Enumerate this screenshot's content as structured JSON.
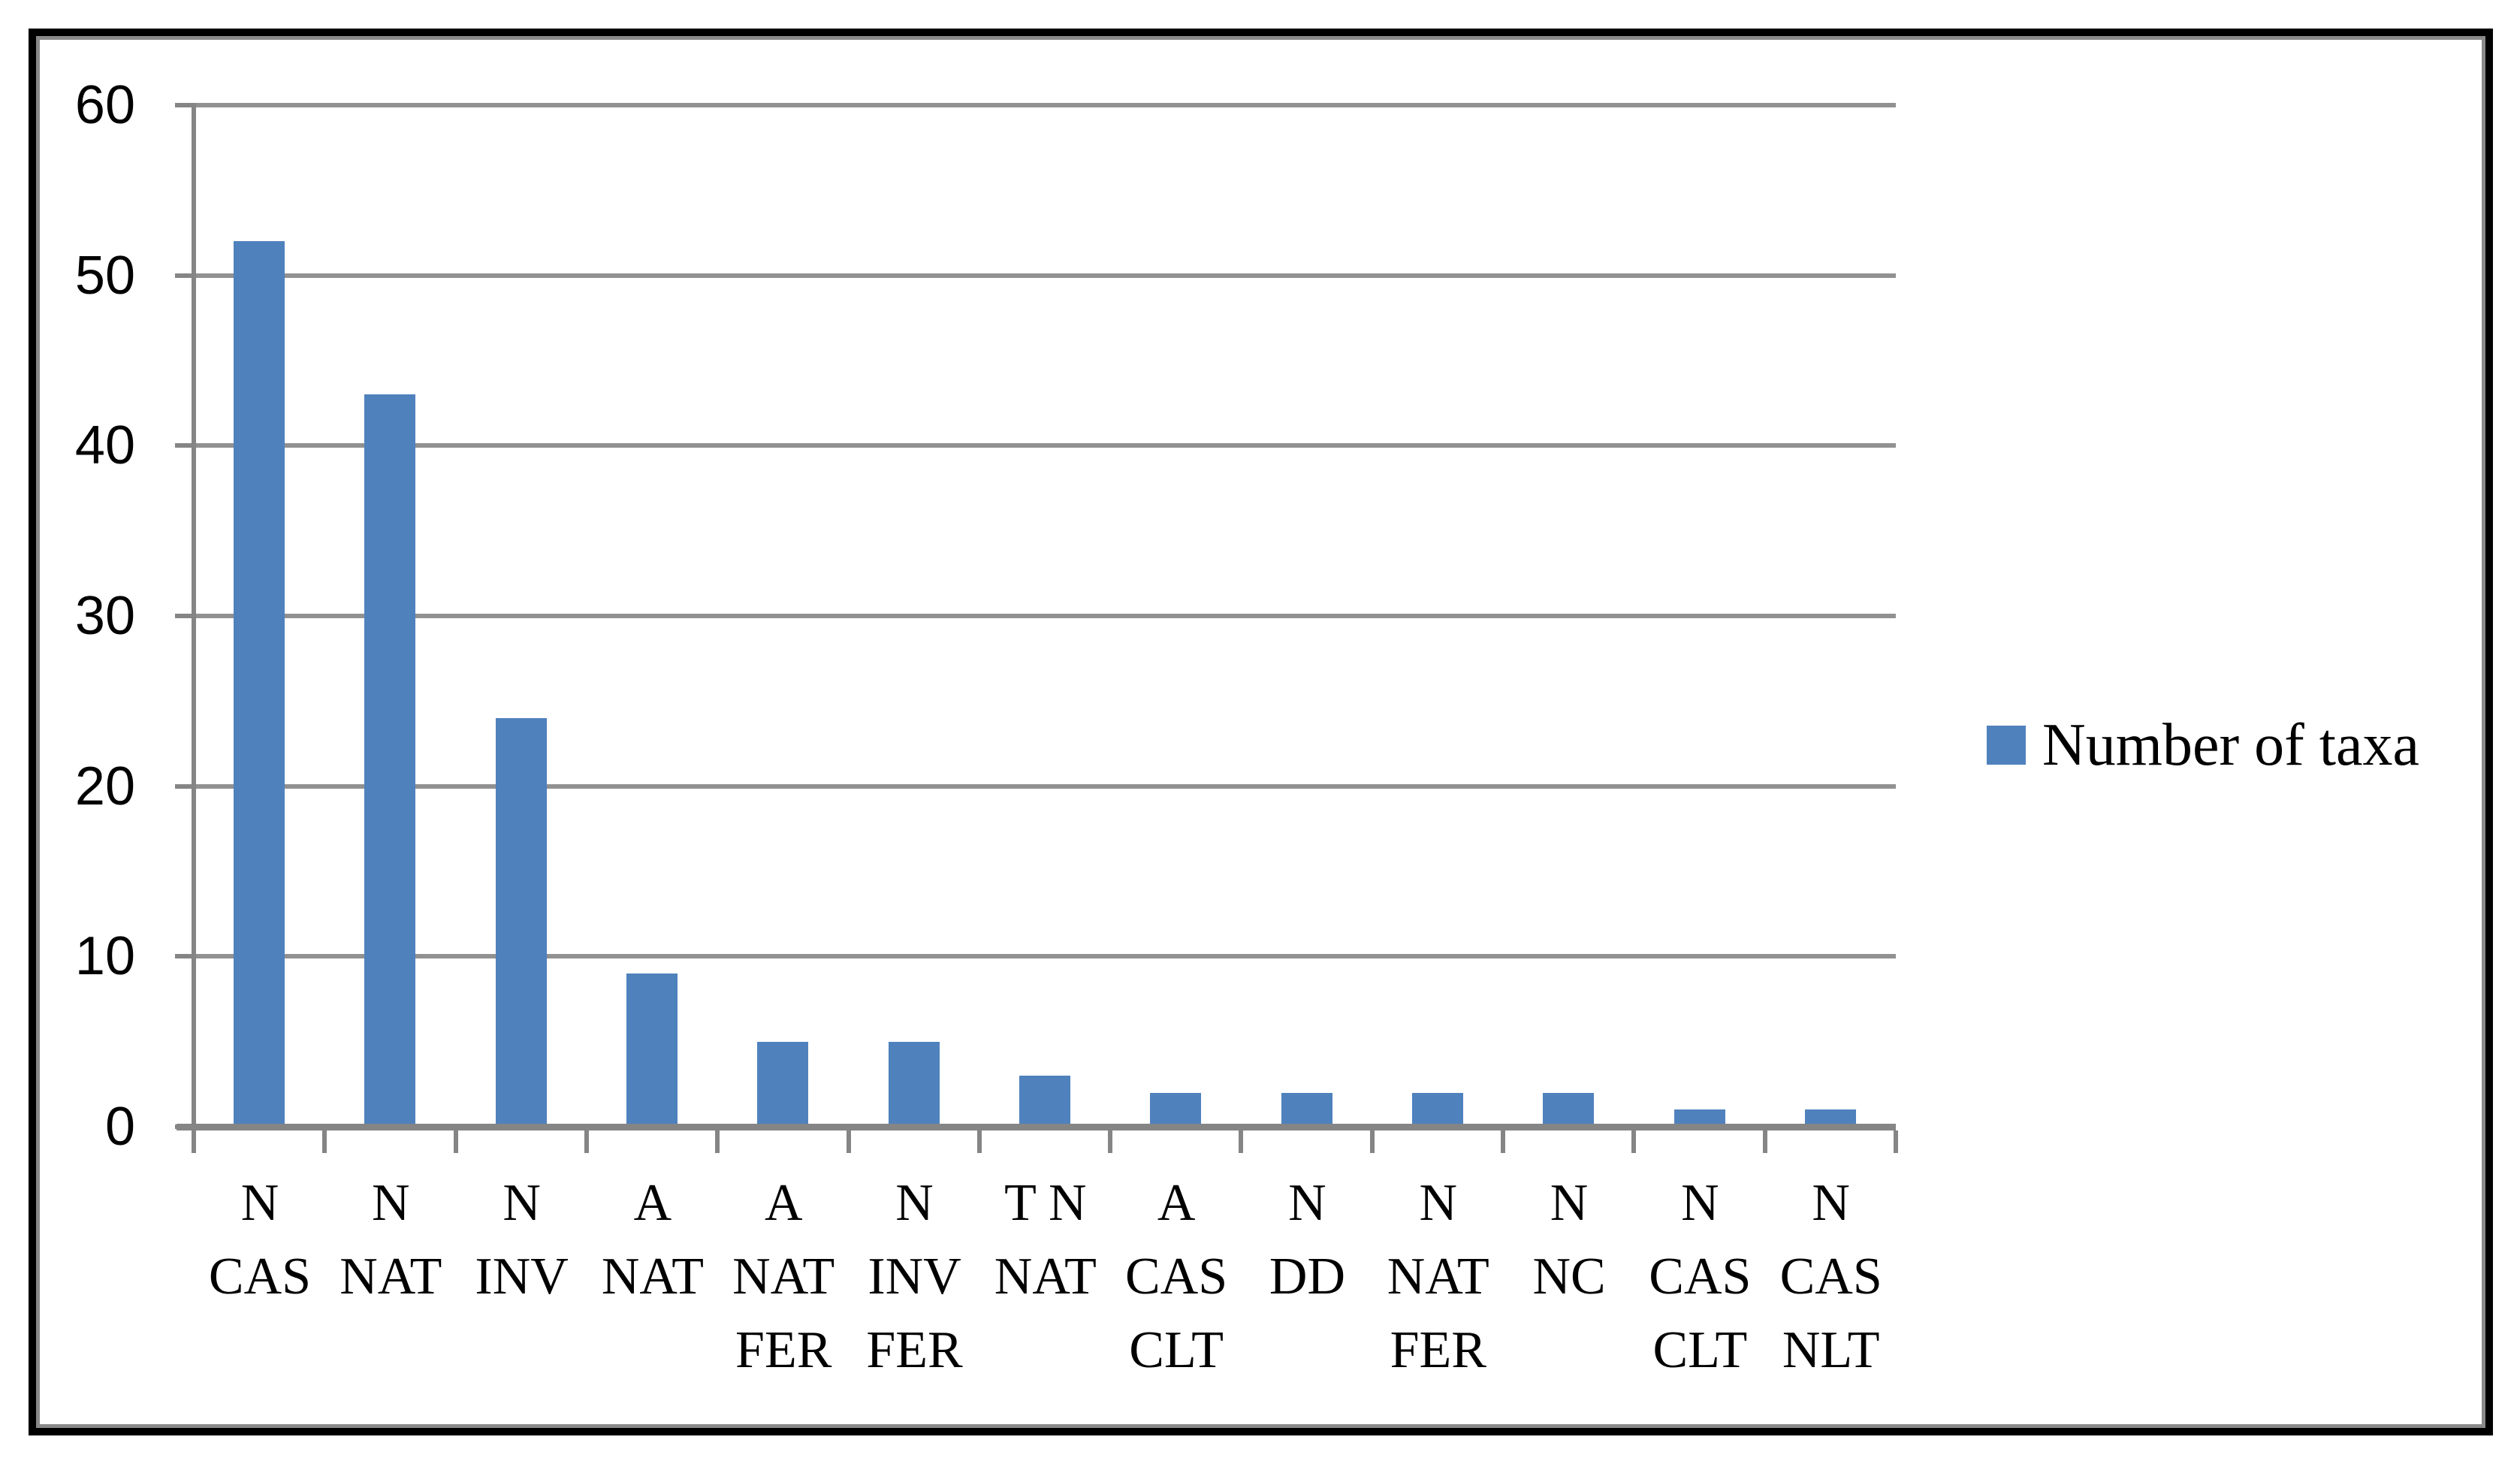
{
  "chart_data": {
    "type": "bar",
    "title": "",
    "categories": [
      "N CAS",
      "N NAT",
      "N INV",
      "A NAT",
      "A NAT FER",
      "N INV FER",
      "T N NAT",
      "A CAS CLT",
      "N DD",
      "N NAT FER",
      "N NC",
      "N CAS CLT",
      "N CAS NLT"
    ],
    "category_lines": [
      [
        "N",
        "CAS"
      ],
      [
        "N",
        "NAT"
      ],
      [
        "N",
        "INV"
      ],
      [
        "A",
        "NAT"
      ],
      [
        "A",
        "NAT",
        "FER"
      ],
      [
        "N",
        "INV",
        "FER"
      ],
      [
        "T N",
        "NAT"
      ],
      [
        "A",
        "CAS",
        "CLT"
      ],
      [
        "N",
        "DD"
      ],
      [
        "N",
        "NAT",
        "FER"
      ],
      [
        "N",
        "NC"
      ],
      [
        "N",
        "CAS",
        "CLT"
      ],
      [
        "N",
        "CAS",
        "NLT"
      ]
    ],
    "series": [
      {
        "name": "Number of taxa",
        "values": [
          52,
          43,
          24,
          9,
          5,
          5,
          3,
          2,
          2,
          2,
          2,
          1,
          1
        ]
      }
    ],
    "values": [
      52,
      43,
      24,
      9,
      5,
      5,
      3,
      2,
      2,
      2,
      2,
      1,
      1
    ],
    "xlabel": "",
    "ylabel": "",
    "ylim": [
      0,
      60
    ],
    "yticks": [
      "0",
      "10",
      "20",
      "30",
      "40",
      "50",
      "60"
    ],
    "grid": true,
    "legend_position": "right",
    "colors": {
      "bar": "#4F81BD",
      "gridline": "#919191",
      "axis": "#858585",
      "text": "#000000",
      "outer_border": "#000000",
      "inner_border": "#8A8A8A"
    }
  },
  "legend": {
    "label": "Number of taxa"
  }
}
